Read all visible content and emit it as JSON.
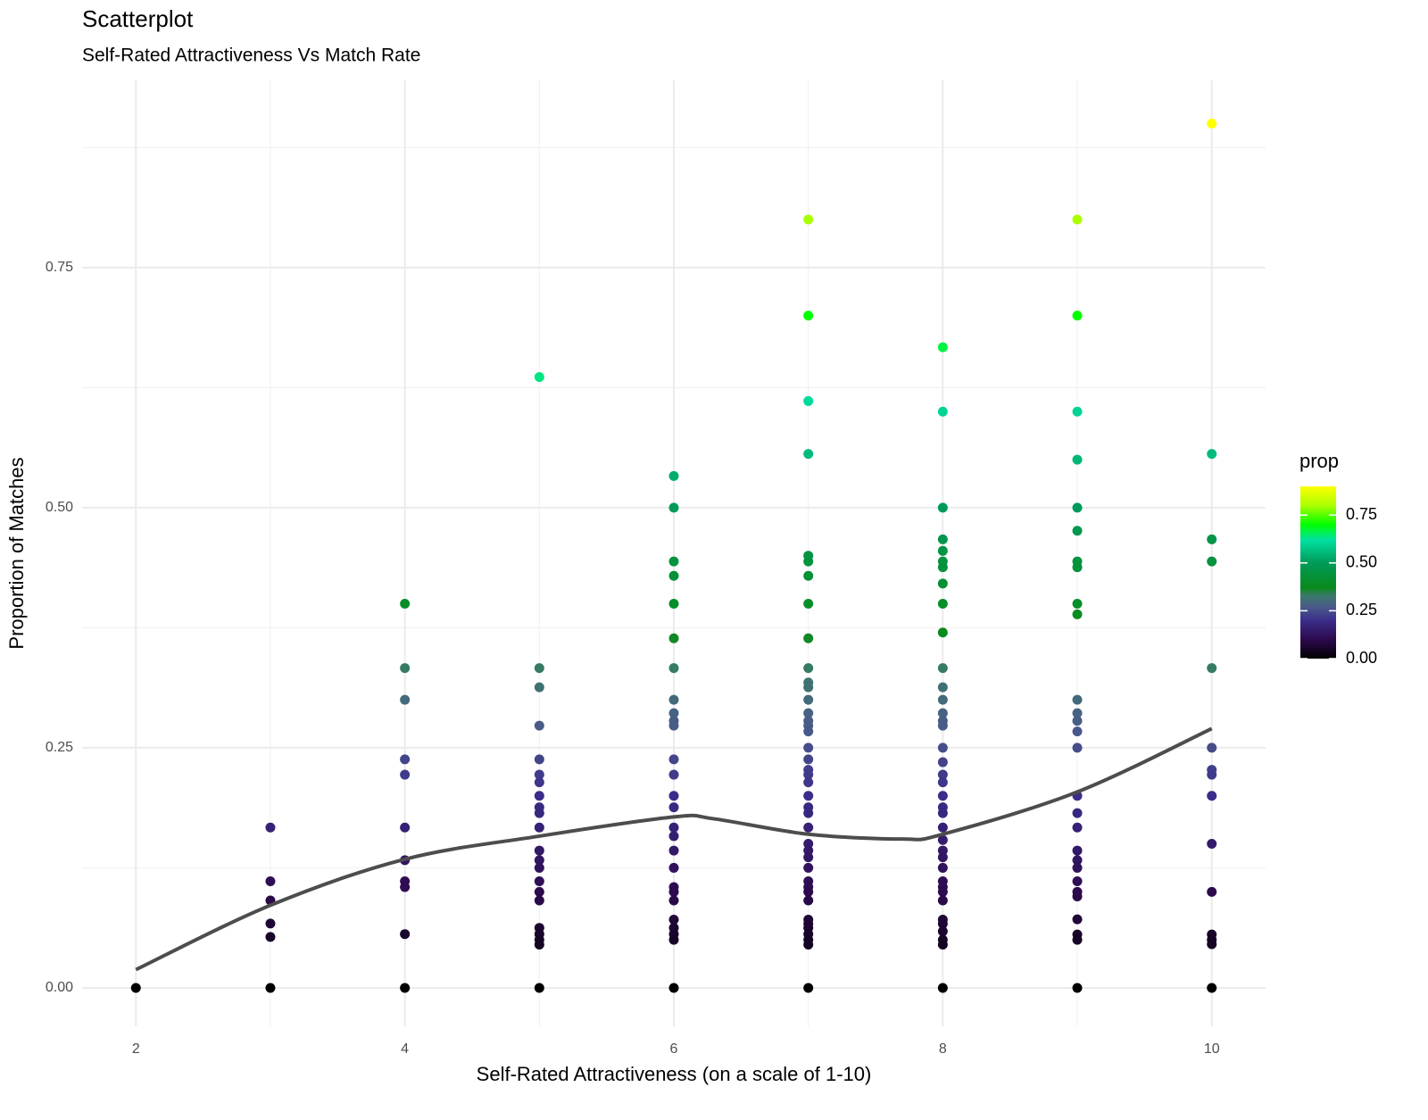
{
  "chart_data": {
    "type": "scatter",
    "title": "Scatterplot",
    "subtitle": "Self-Rated Attractiveness Vs Match Rate",
    "x_label": "Self-Rated Attractiveness (on a scale of 1-10)",
    "y_label": "Proportion of Matches",
    "xlim": [
      1.6,
      10.4
    ],
    "ylim": [
      -0.04,
      0.945
    ],
    "xticks": [
      2,
      4,
      6,
      8,
      10
    ],
    "minor_xticks": [
      3,
      5,
      7,
      9
    ],
    "yticks": [
      {
        "value": 0,
        "label": "0.00"
      },
      {
        "value": 0.25,
        "label": "0.25"
      },
      {
        "value": 0.5,
        "label": "0.50"
      },
      {
        "value": 0.75,
        "label": "0.75"
      }
    ],
    "minor_yticks": [
      0.125,
      0.375,
      0.625,
      0.875
    ],
    "grid": true,
    "x": [
      2,
      3,
      3,
      3,
      3,
      3,
      3,
      4,
      4,
      4,
      4,
      4,
      4,
      4,
      4,
      4,
      4,
      4,
      5,
      5,
      5,
      5,
      5,
      5,
      5,
      5,
      5,
      5,
      5,
      5,
      5,
      5,
      5,
      5,
      5,
      5,
      5,
      5,
      5,
      5,
      6,
      6,
      6,
      6,
      6,
      6,
      6,
      6,
      6,
      6,
      6,
      6,
      6,
      6,
      6,
      6,
      6,
      6,
      6,
      6,
      6,
      6,
      6,
      6,
      6,
      6,
      6,
      7,
      7,
      7,
      7,
      7,
      7,
      7,
      7,
      7,
      7,
      7,
      7,
      7,
      7,
      7,
      7,
      7,
      7,
      7,
      7,
      7,
      7,
      7,
      7,
      7,
      7,
      7,
      7,
      7,
      7,
      7,
      7,
      7,
      7,
      7,
      7,
      7,
      7,
      7,
      7,
      7,
      8,
      8,
      8,
      8,
      8,
      8,
      8,
      8,
      8,
      8,
      8,
      8,
      8,
      8,
      8,
      8,
      8,
      8,
      8,
      8,
      8,
      8,
      8,
      8,
      8,
      8,
      8,
      8,
      8,
      8,
      8,
      8,
      8,
      8,
      8,
      8,
      8,
      8,
      9,
      9,
      9,
      9,
      9,
      9,
      9,
      9,
      9,
      9,
      9,
      9,
      9,
      9,
      9,
      9,
      9,
      9,
      9,
      9,
      9,
      9,
      9,
      9,
      9,
      9,
      9,
      9,
      10,
      10,
      10,
      10,
      10,
      10,
      10,
      10,
      10,
      10,
      10,
      10,
      10,
      10,
      10
    ],
    "y": [
      0,
      0.167,
      0.111,
      0.091,
      0.067,
      0.053,
      0,
      0.4,
      0.333,
      0.3,
      0.238,
      0.222,
      0.167,
      0.133,
      0.111,
      0.105,
      0.056,
      0,
      0.636,
      0.333,
      0.313,
      0.273,
      0.238,
      0.222,
      0.214,
      0.2,
      0.188,
      0.182,
      0.167,
      0.143,
      0.133,
      0.125,
      0.111,
      0.1,
      0.091,
      0.0625,
      0.056,
      0.05,
      0.045,
      0,
      0.533,
      0.5,
      0.444,
      0.429,
      0.4,
      0.364,
      0.333,
      0.3,
      0.286,
      0.278,
      0.273,
      0.238,
      0.222,
      0.2,
      0.188,
      0.167,
      0.158,
      0.143,
      0.125,
      0.105,
      0.1,
      0.091,
      0.071,
      0.0625,
      0.056,
      0.05,
      0,
      0.8,
      0.7,
      0.611,
      0.556,
      0.45,
      0.444,
      0.429,
      0.4,
      0.364,
      0.333,
      0.318,
      0.313,
      0.3,
      0.286,
      0.278,
      0.273,
      0.267,
      0.25,
      0.238,
      0.227,
      0.222,
      0.214,
      0.2,
      0.188,
      0.182,
      0.167,
      0.15,
      0.143,
      0.136,
      0.125,
      0.111,
      0.105,
      0.1,
      0.091,
      0.071,
      0.0667,
      0.0625,
      0.056,
      0.05,
      0.045,
      0,
      0.667,
      0.6,
      0.5,
      0.467,
      0.455,
      0.444,
      0.438,
      0.421,
      0.4,
      0.37,
      0.333,
      0.313,
      0.3,
      0.286,
      0.278,
      0.273,
      0.25,
      0.235,
      0.222,
      0.214,
      0.2,
      0.188,
      0.182,
      0.167,
      0.154,
      0.143,
      0.136,
      0.125,
      0.111,
      0.105,
      0.1,
      0.091,
      0.071,
      0.0667,
      0.0588,
      0.05,
      0.045,
      0,
      0.8,
      0.7,
      0.6,
      0.55,
      0.5,
      0.476,
      0.444,
      0.438,
      0.4,
      0.389,
      0.3,
      0.286,
      0.278,
      0.267,
      0.25,
      0.2,
      0.182,
      0.167,
      0.143,
      0.133,
      0.125,
      0.111,
      0.1,
      0.0952,
      0.0714,
      0.0556,
      0.05,
      0,
      0.9,
      0.556,
      0.467,
      0.444,
      0.333,
      0.25,
      0.227,
      0.222,
      0.2,
      0.15,
      0.1,
      0.0556,
      0.05,
      0.0455,
      0
    ],
    "smooth": {
      "color": "#4d4d4d",
      "x": [
        2,
        3,
        4,
        5,
        6,
        6.3,
        7,
        7.7,
        8,
        9,
        10
      ],
      "y": [
        0.019,
        0.086,
        0.134,
        0.158,
        0.178,
        0.176,
        0.16,
        0.155,
        0.16,
        0.204,
        0.27
      ]
    },
    "color_scale": {
      "title": "prop",
      "limits": [
        0,
        0.9
      ],
      "ticks": [
        {
          "value": 0,
          "label": "0.00"
        },
        {
          "value": 0.25,
          "label": "0.25"
        },
        {
          "value": 0.5,
          "label": "0.50"
        },
        {
          "value": 0.75,
          "label": "0.75"
        }
      ],
      "stops": [
        0,
        0.1,
        0.2,
        0.27,
        0.33,
        0.37,
        0.5,
        0.62,
        0.7,
        0.8,
        0.9
      ],
      "colors": [
        "#000000",
        "#2d0a4e",
        "#3b2d8a",
        "#4a5a8a",
        "#3a7a6a",
        "#0a8a1a",
        "#009a5a",
        "#00e0a0",
        "#00ff00",
        "#aaff00",
        "#ffff00"
      ]
    }
  }
}
